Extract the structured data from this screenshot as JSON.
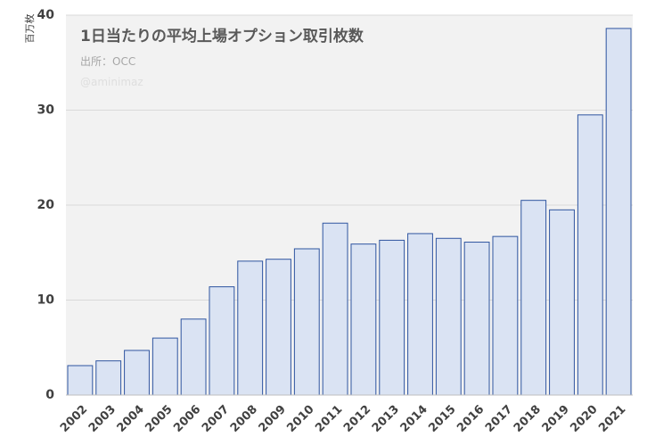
{
  "chart_data": {
    "type": "bar",
    "title": "1日当たりの平均上場オプション取引枚数",
    "subtitle": "出所：OCC",
    "watermark": "@aminimaz",
    "ylabel": "百万枚",
    "xlabel": "",
    "ylim": [
      0,
      40
    ],
    "yticks": [
      "0",
      "10",
      "20",
      "30",
      "40"
    ],
    "grid": true,
    "categories": [
      "2002",
      "2003",
      "2004",
      "2005",
      "2006",
      "2007",
      "2008",
      "2009",
      "2010",
      "2011",
      "2012",
      "2013",
      "2014",
      "2015",
      "2016",
      "2017",
      "2018",
      "2019",
      "2020",
      "2021"
    ],
    "values": [
      3.1,
      3.6,
      4.7,
      6.0,
      8.0,
      11.4,
      14.1,
      14.3,
      15.4,
      18.1,
      15.9,
      16.3,
      17.0,
      16.5,
      16.1,
      16.7,
      20.5,
      19.5,
      29.5,
      38.6
    ]
  },
  "colors": {
    "plot_background": "#f2f2f2",
    "bar_fill": "#dae3f3",
    "bar_stroke": "#2f55a0",
    "gridline": "#d9d9d9",
    "axis": "#bfbfbf"
  }
}
